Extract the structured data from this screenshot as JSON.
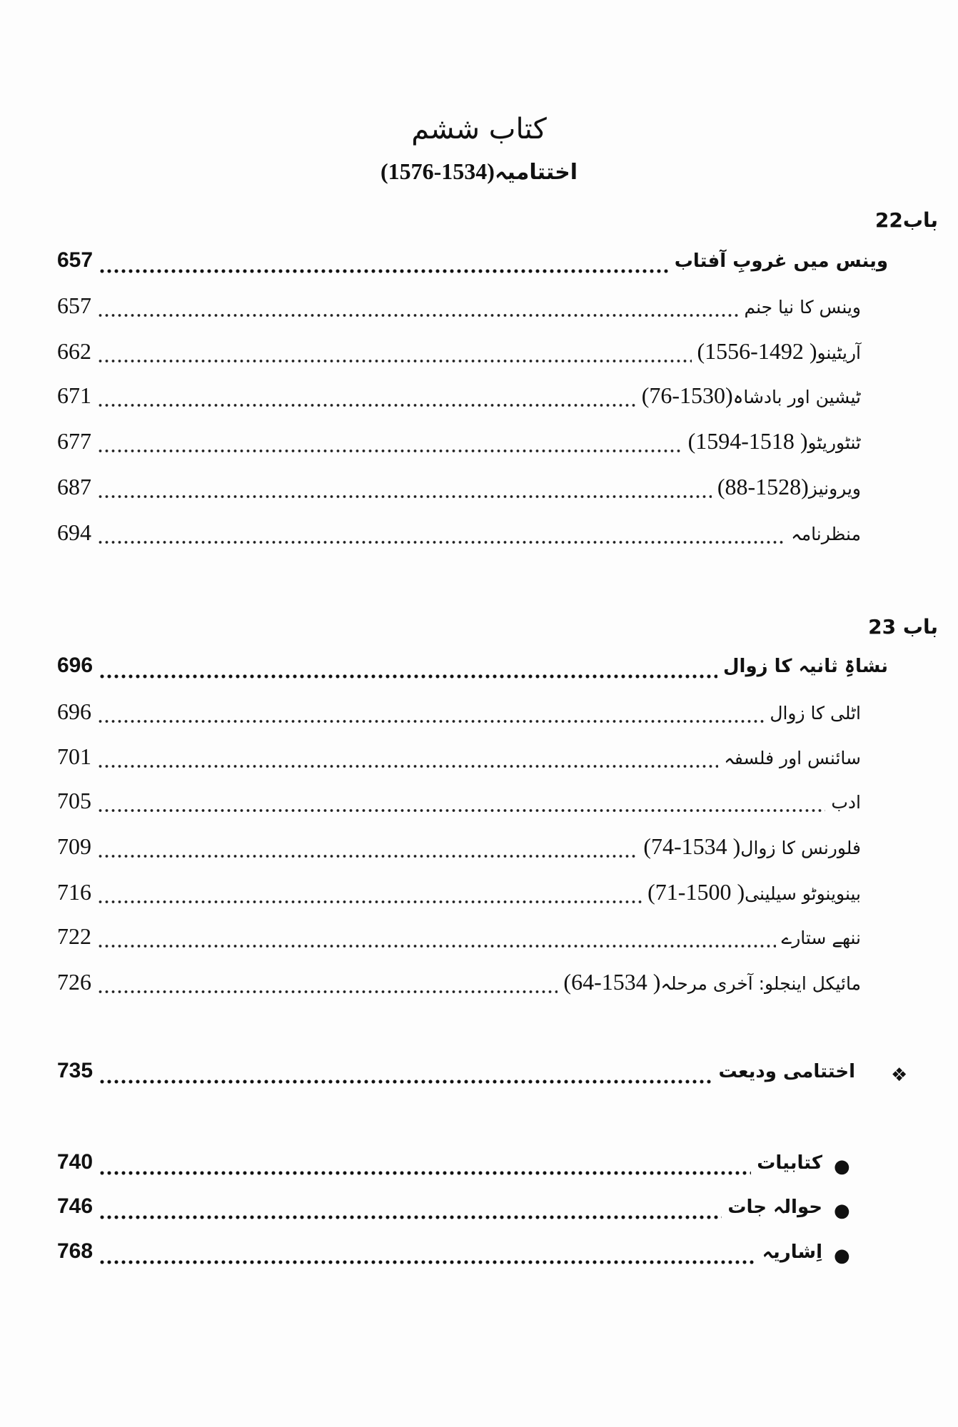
{
  "header": {
    "book_title": "کتاب ششم",
    "subtitle_text": "اختتامیہ",
    "subtitle_years": "(1534-1576)"
  },
  "chapters": [
    {
      "label": "باب22",
      "entries": [
        {
          "text": "وینس میں غروبِ آفتاب",
          "years": "",
          "page": "657",
          "bold": true
        },
        {
          "text": "وینس کا نیا جنم",
          "years": "",
          "page": "657",
          "bold": false
        },
        {
          "text": "آریٹینو",
          "years": "( 1492-1556)",
          "page": "662",
          "bold": false
        },
        {
          "text": "ٹیشین اور بادشاہ",
          "years": "(1530-76)",
          "page": "671",
          "bold": false
        },
        {
          "text": "ٹنٹوریٹو",
          "years": "( 1518-1594)",
          "page": "677",
          "bold": false
        },
        {
          "text": "ویرونیز",
          "years": "(1528-88)",
          "page": "687",
          "bold": false
        },
        {
          "text": "منظرنامہ",
          "years": "",
          "page": "694",
          "bold": false
        }
      ]
    },
    {
      "label": "باب 23",
      "entries": [
        {
          "text": "نشاۃِ ثانیہ کا زوال",
          "years": "",
          "page": "696",
          "bold": true
        },
        {
          "text": "اٹلی کا زوال",
          "years": "",
          "page": "696",
          "bold": false
        },
        {
          "text": "سائنس اور فلسفہ",
          "years": "",
          "page": "701",
          "bold": false
        },
        {
          "text": "ادب",
          "years": "",
          "page": "705",
          "bold": false
        },
        {
          "text": "فلورنس کا زوال",
          "years": "( 1534-74)",
          "page": "709",
          "bold": false
        },
        {
          "text": "بینوینوٹو سیلینی",
          "years": "( 1500-71)",
          "page": "716",
          "bold": false
        },
        {
          "text": "ننھے ستارے",
          "years": "",
          "page": "722",
          "bold": false
        },
        {
          "text": "مائیکل اینجلو: آخری مرحلہ",
          "years": "( 1534-64)",
          "page": "726",
          "bold": false
        }
      ]
    }
  ],
  "closing": {
    "marker": "❖",
    "text": "اختتامی ودیعت",
    "page": "735"
  },
  "appendix": {
    "marker": "●",
    "items": [
      {
        "text": "کتابیات",
        "page": "740"
      },
      {
        "text": "حوالہ جات",
        "page": "746"
      },
      {
        "text": "اِشاریہ",
        "page": "768"
      }
    ]
  }
}
